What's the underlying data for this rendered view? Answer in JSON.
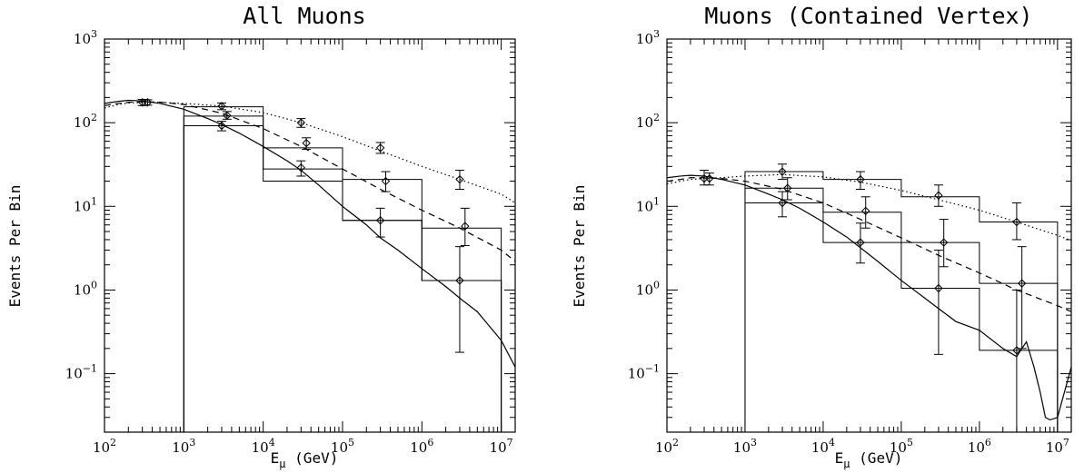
{
  "chart_data": [
    {
      "type": "line",
      "title": "All Muons",
      "xlabel_main": "E",
      "xlabel_sub": "μ",
      "xlabel_unit": "(GeV)",
      "ylabel": "Events Per Bin",
      "xscale": "log",
      "yscale": "log",
      "xlim": [
        100,
        15000000
      ],
      "ylim": [
        0.02,
        1000
      ],
      "x_ticks": [
        {
          "base": "10",
          "exp": "2"
        },
        {
          "base": "10",
          "exp": "3"
        },
        {
          "base": "10",
          "exp": "4"
        },
        {
          "base": "10",
          "exp": "5"
        },
        {
          "base": "10",
          "exp": "6"
        },
        {
          "base": "10",
          "exp": "7"
        }
      ],
      "y_ticks": [
        {
          "base": "10",
          "exp": "−1"
        },
        {
          "base": "10",
          "exp": "0"
        },
        {
          "base": "10",
          "exp": "1"
        },
        {
          "base": "10",
          "exp": "2"
        },
        {
          "base": "10",
          "exp": "3"
        }
      ],
      "histograms": [
        {
          "edges": [
            1000,
            10000,
            100000,
            1000000,
            10000000
          ],
          "values": [
            155,
            50,
            21,
            5.5
          ]
        },
        {
          "edges": [
            1000,
            10000,
            100000,
            1000000,
            10000000
          ],
          "values": [
            120,
            20,
            6.8,
            1.3
          ]
        },
        {
          "edges": [
            1000,
            10000,
            100000,
            1000000,
            10000000
          ],
          "values": [
            92,
            28,
            6.8,
            1.3
          ]
        }
      ],
      "curves": [
        {
          "style": "dotted",
          "x": [
            100,
            150,
            200,
            300,
            500,
            1000,
            3000,
            10000,
            30000,
            100000,
            300000,
            1000000,
            3000000,
            10000000,
            15000000
          ],
          "y": [
            150,
            165,
            172,
            175,
            175,
            170,
            158,
            132,
            100,
            68,
            46,
            30,
            21,
            14,
            11
          ]
        },
        {
          "style": "dashed",
          "x": [
            100,
            150,
            200,
            300,
            500,
            1000,
            3000,
            10000,
            30000,
            100000,
            300000,
            1000000,
            3000000,
            10000000,
            15000000
          ],
          "y": [
            160,
            170,
            175,
            178,
            176,
            165,
            130,
            85,
            52,
            28,
            16,
            9,
            5.5,
            3,
            2.2
          ]
        },
        {
          "style": "solid",
          "x": [
            100,
            150,
            200,
            300,
            500,
            1000,
            2000,
            3000,
            5000,
            10000,
            20000,
            30000,
            50000,
            100000,
            200000,
            300000,
            500000,
            1000000,
            2000000,
            3000000,
            5000000,
            10000000,
            15000000
          ],
          "y": [
            170,
            180,
            185,
            182,
            170,
            145,
            112,
            95,
            75,
            52,
            35,
            27,
            18,
            10,
            6,
            4.2,
            3,
            1.8,
            1.1,
            0.8,
            0.55,
            0.25,
            0.12
          ]
        }
      ],
      "points": [
        {
          "x": 300,
          "y": 175,
          "yerr": [
            160,
            190
          ]
        },
        {
          "x": 350,
          "y": 175,
          "yerr": [
            162,
            188
          ]
        },
        {
          "x": 3000,
          "y": 158,
          "yerr": [
            143,
            172
          ]
        },
        {
          "x": 3500,
          "y": 122,
          "yerr": [
            110,
            136
          ]
        },
        {
          "x": 3000,
          "y": 92,
          "yerr": [
            80,
            104
          ]
        },
        {
          "x": 30000,
          "y": 100,
          "yerr": [
            88,
            112
          ]
        },
        {
          "x": 35000,
          "y": 57,
          "yerr": [
            48,
            66
          ]
        },
        {
          "x": 30000,
          "y": 29,
          "yerr": [
            23,
            35
          ]
        },
        {
          "x": 300000,
          "y": 50,
          "yerr": [
            43,
            58
          ]
        },
        {
          "x": 350000,
          "y": 20,
          "yerr": [
            15,
            26
          ]
        },
        {
          "x": 300000,
          "y": 6.8,
          "yerr": [
            4.3,
            9.5
          ]
        },
        {
          "x": 3000000,
          "y": 21,
          "yerr": [
            16,
            27
          ]
        },
        {
          "x": 3500000,
          "y": 5.8,
          "yerr": [
            3.4,
            9.5
          ]
        },
        {
          "x": 3000000,
          "y": 1.3,
          "yerr": [
            0.18,
            3.3
          ]
        }
      ]
    },
    {
      "type": "line",
      "title": "Muons (Contained Vertex)",
      "xlabel_main": "E",
      "xlabel_sub": "μ",
      "xlabel_unit": "(GeV)",
      "ylabel": "Events Per Bin",
      "xscale": "log",
      "yscale": "log",
      "xlim": [
        100,
        15000000
      ],
      "ylim": [
        0.02,
        1000
      ],
      "x_ticks": [
        {
          "base": "10",
          "exp": "2"
        },
        {
          "base": "10",
          "exp": "3"
        },
        {
          "base": "10",
          "exp": "4"
        },
        {
          "base": "10",
          "exp": "5"
        },
        {
          "base": "10",
          "exp": "6"
        },
        {
          "base": "10",
          "exp": "7"
        }
      ],
      "y_ticks": [
        {
          "base": "10",
          "exp": "−1"
        },
        {
          "base": "10",
          "exp": "0"
        },
        {
          "base": "10",
          "exp": "1"
        },
        {
          "base": "10",
          "exp": "2"
        },
        {
          "base": "10",
          "exp": "3"
        }
      ],
      "histograms": [
        {
          "edges": [
            1000,
            10000,
            100000,
            1000000,
            10000000
          ],
          "values": [
            26,
            21,
            13,
            6.5
          ]
        },
        {
          "edges": [
            1000,
            10000,
            100000,
            1000000,
            10000000
          ],
          "values": [
            16.5,
            8.5,
            3.7,
            1.2
          ]
        },
        {
          "edges": [
            1000,
            10000,
            100000,
            1000000,
            10000000
          ],
          "values": [
            11,
            3.7,
            1.05,
            0.19
          ]
        }
      ],
      "curves": [
        {
          "style": "dotted",
          "x": [
            100,
            150,
            200,
            300,
            500,
            1000,
            3000,
            10000,
            30000,
            100000,
            300000,
            1000000,
            3000000,
            10000000,
            15000000
          ],
          "y": [
            18.5,
            20,
            21,
            21.5,
            22,
            23,
            24,
            22.5,
            19.5,
            15.5,
            12,
            9,
            6.5,
            4.5,
            3.9
          ]
        },
        {
          "style": "dashed",
          "x": [
            100,
            150,
            200,
            300,
            500,
            1000,
            3000,
            10000,
            30000,
            100000,
            300000,
            1000000,
            3000000,
            10000000,
            15000000
          ],
          "y": [
            20,
            21,
            22,
            22,
            21.5,
            20,
            16,
            11,
            7,
            4.2,
            2.6,
            1.6,
            1,
            0.65,
            0.55
          ]
        },
        {
          "style": "solid",
          "x": [
            100,
            150,
            200,
            300,
            500,
            1000,
            2000,
            3000,
            5000,
            10000,
            20000,
            30000,
            50000,
            100000,
            200000,
            300000,
            500000,
            1000000,
            2000000,
            3000000,
            3500000,
            4000000,
            5000000,
            6000000,
            7000000,
            8000000,
            10000000,
            15000000
          ],
          "y": [
            22,
            23,
            23.5,
            23,
            21,
            18,
            14,
            12,
            9.5,
            6.5,
            4.3,
            3.2,
            2.2,
            1.3,
            0.8,
            0.6,
            0.42,
            0.33,
            0.2,
            0.16,
            0.2,
            0.24,
            0.12,
            0.06,
            0.03,
            0.028,
            0.03,
            0.12
          ]
        }
      ],
      "points": [
        {
          "x": 300,
          "y": 21.5,
          "yerr": [
            18,
            27
          ]
        },
        {
          "x": 350,
          "y": 21.5,
          "yerr": [
            18,
            25
          ]
        },
        {
          "x": 3000,
          "y": 26,
          "yerr": [
            21,
            32
          ]
        },
        {
          "x": 3500,
          "y": 16.5,
          "yerr": [
            12,
            22
          ]
        },
        {
          "x": 3000,
          "y": 11,
          "yerr": [
            7.5,
            15
          ]
        },
        {
          "x": 30000,
          "y": 21,
          "yerr": [
            16,
            26
          ]
        },
        {
          "x": 35000,
          "y": 8.8,
          "yerr": [
            5.5,
            13
          ]
        },
        {
          "x": 30000,
          "y": 3.7,
          "yerr": [
            2.1,
            6.3
          ]
        },
        {
          "x": 300000,
          "y": 13.5,
          "yerr": [
            10,
            18
          ]
        },
        {
          "x": 350000,
          "y": 3.7,
          "yerr": [
            1.9,
            7
          ]
        },
        {
          "x": 300000,
          "y": 1.05,
          "yerr": [
            0.17,
            3
          ]
        },
        {
          "x": 3000000,
          "y": 6.5,
          "yerr": [
            4,
            11
          ]
        },
        {
          "x": 3500000,
          "y": 1.2,
          "yerr": [
            0.2,
            3.3
          ]
        },
        {
          "x": 3000000,
          "y": 0.19,
          "yerr": [
            0.02,
            1
          ]
        }
      ]
    }
  ]
}
